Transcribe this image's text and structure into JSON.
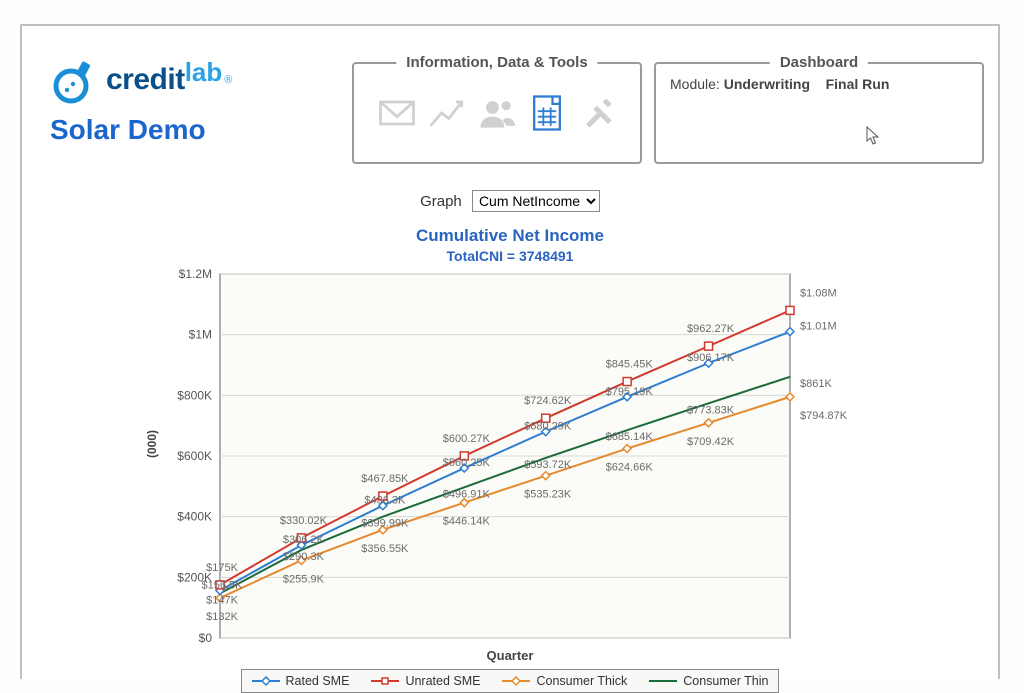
{
  "brand": {
    "credit": "credit",
    "lab": "lab",
    "reg": "®"
  },
  "subtitle": "Solar Demo",
  "panels": {
    "info_title": "Information, Data & Tools",
    "dash_title": "Dashboard",
    "dash_module_label": "Module:",
    "dash_module_value": "Underwriting",
    "dash_run": "Final Run"
  },
  "selector": {
    "label": "Graph",
    "value": "Cum NetIncome",
    "options": [
      "Cum NetIncome"
    ]
  },
  "chart": {
    "type": "line",
    "title": "Cumulative Net Income",
    "subtitle": "TotalCNI = 3748491",
    "ylabel": "(000)",
    "xlabel": "Quarter",
    "background_color": "#fbfbf8",
    "border_color": "#7a7a7a",
    "grid_color": "#d8d8d5",
    "ylim": [
      0,
      1200
    ],
    "yticks": [
      0,
      200,
      400,
      600,
      800,
      1000,
      1200
    ],
    "ytick_labels": [
      "$0",
      "$200K",
      "$400K",
      "$600K",
      "$800K",
      "$1M",
      "$1.2M"
    ],
    "n_points": 8,
    "marker_size": 4,
    "line_width": 2,
    "series": [
      {
        "name": "Rated SME",
        "color": "#2e7fd1",
        "marker": "diamond",
        "values": [
          156.5,
          306.2,
          436.3,
          560.25,
          680.29,
          795.19,
          906.17,
          1010
        ],
        "labels": [
          "$156.5K",
          "$306.2K",
          "$436.3K",
          "$560.25K",
          "$680.29K",
          "$795.19K",
          "$906.17K",
          "$1.01M"
        ]
      },
      {
        "name": "Unrated SME",
        "color": "#d23a2e",
        "marker": "square",
        "values": [
          175,
          330.02,
          467.85,
          600.27,
          724.62,
          845.45,
          962.27,
          1080
        ],
        "labels": [
          "$175K",
          "$330.02K",
          "$467.85K",
          "$600.27K",
          "$724.62K",
          "$845.45K",
          "$962.27K",
          "$1.08M"
        ]
      },
      {
        "name": "Consumer Thick",
        "color": "#e58a2e",
        "marker": "diamond",
        "values": [
          132,
          255.9,
          356.55,
          446.14,
          535.23,
          624.66,
          709.42,
          794.87
        ],
        "labels": [
          "$132K",
          "$255.9K",
          "$356.55K",
          "$446.14K",
          "$535.23K",
          "$624.66K",
          "$709.42K",
          "$794.87K"
        ]
      },
      {
        "name": "Consumer Thin",
        "color": "#1b6b3a",
        "marker": "none",
        "values": [
          147,
          290.3,
          399.99,
          496.91,
          593.72,
          685.14,
          773.83,
          861
        ],
        "labels": [
          "$147K",
          "$290.3K",
          "$399.99K",
          "$496.91K",
          "$593.72K",
          "$685.14K",
          "$773.83K",
          "$861K"
        ]
      }
    ],
    "legend": [
      "Rated SME",
      "Unrated SME",
      "Consumer Thick",
      "Consumer Thin"
    ]
  },
  "icon_colors": {
    "inactive": "#d0d0d0",
    "active": "#2e7fd1"
  }
}
